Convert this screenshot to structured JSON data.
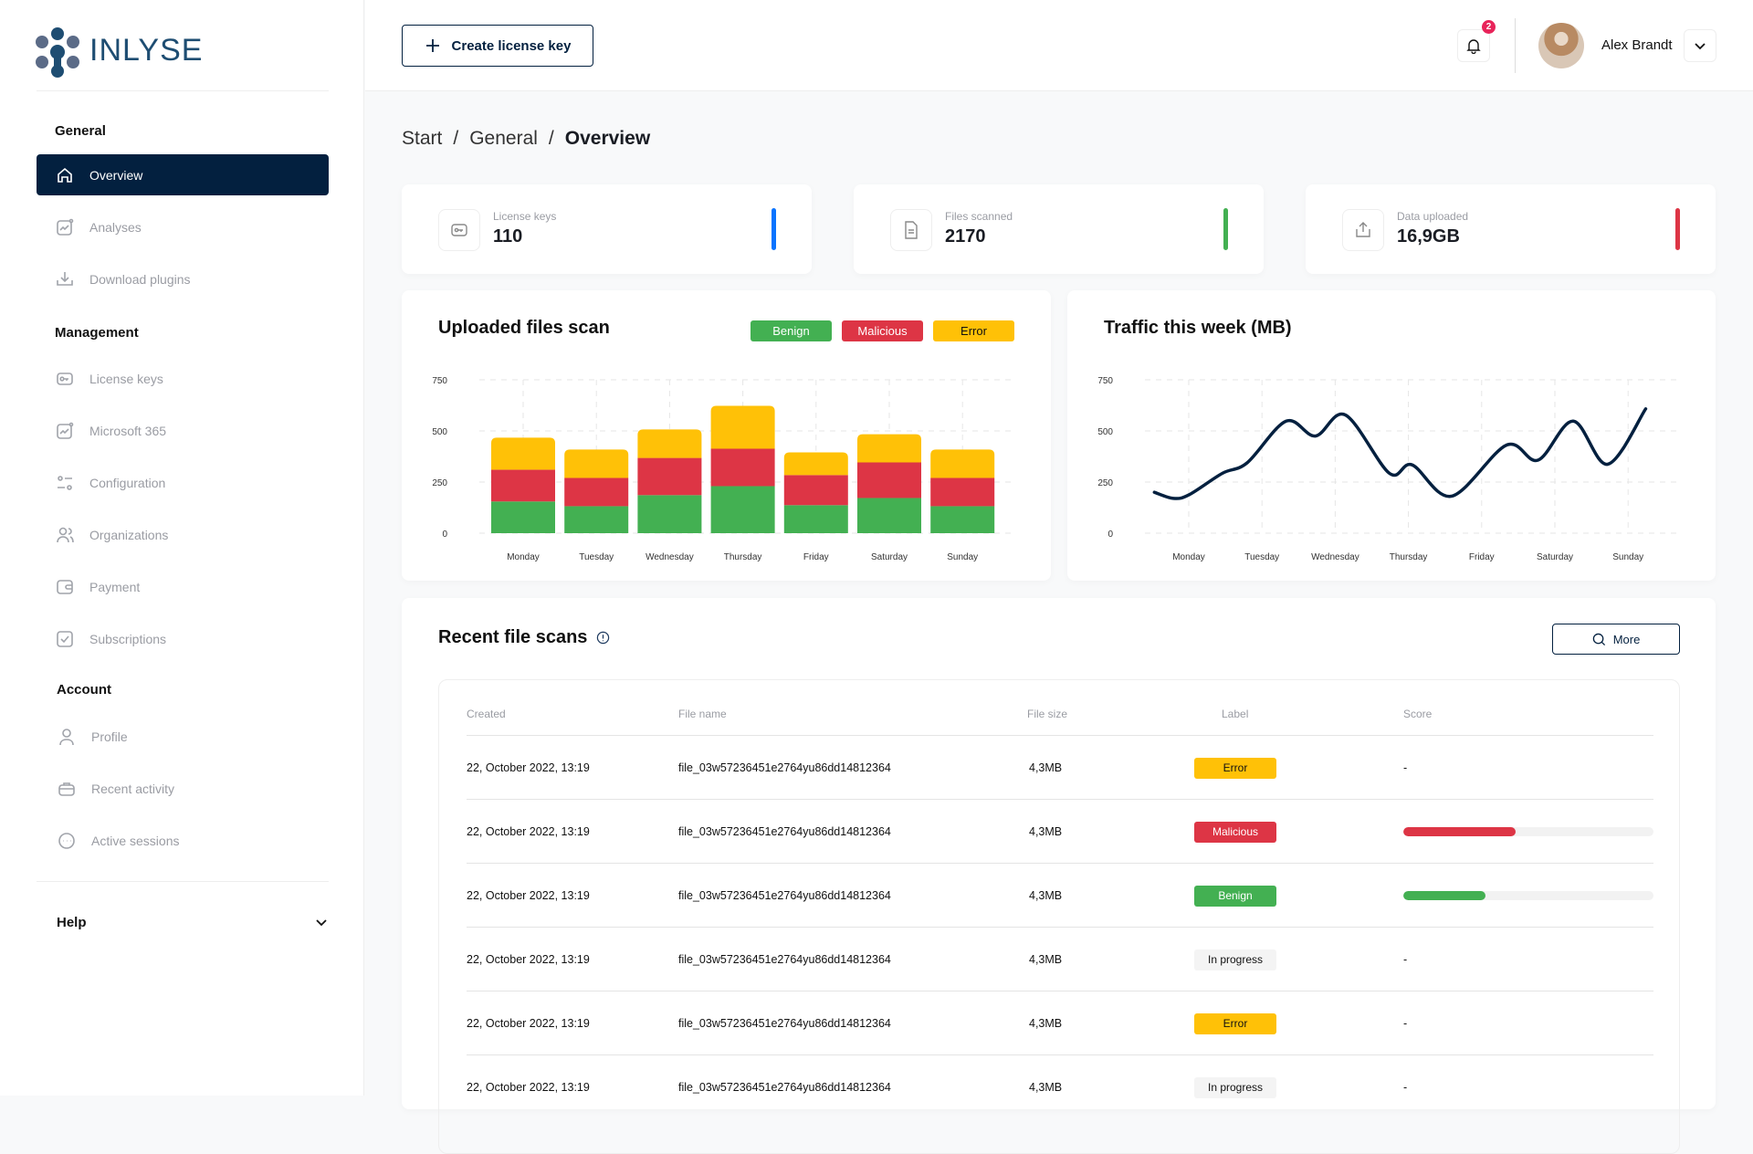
{
  "brand": {
    "name": "INLYSE"
  },
  "sidebar": {
    "sections": {
      "general": "General",
      "management": "Management",
      "account": "Account"
    },
    "items": [
      {
        "label": "Overview",
        "icon": "home-icon"
      },
      {
        "label": "Analyses",
        "icon": "chart-icon"
      },
      {
        "label": "Download plugins",
        "icon": "download-icon"
      },
      {
        "label": "License keys",
        "icon": "key-icon"
      },
      {
        "label": "Microsoft 365",
        "icon": "chart-icon"
      },
      {
        "label": "Configuration",
        "icon": "sliders-icon"
      },
      {
        "label": "Organizations",
        "icon": "users-icon"
      },
      {
        "label": "Payment",
        "icon": "wallet-icon"
      },
      {
        "label": "Subscriptions",
        "icon": "check-square-icon"
      },
      {
        "label": "Profile",
        "icon": "user-icon"
      },
      {
        "label": "Recent activity",
        "icon": "briefcase-icon"
      },
      {
        "label": "Active sessions",
        "icon": "chat-icon"
      }
    ],
    "help": "Help"
  },
  "header": {
    "create_label": "Create license key",
    "notifications": "2",
    "user_name": "Alex Brandt"
  },
  "breadcrumb": [
    "Start",
    "General",
    "Overview"
  ],
  "stats": [
    {
      "label": "License keys",
      "value": "110",
      "color": "#0a74ff"
    },
    {
      "label": "Files scanned",
      "value": "2170",
      "color": "#43b052"
    },
    {
      "label": "Data uploaded",
      "value": "16,9GB",
      "color": "#dd3545"
    }
  ],
  "colors": {
    "benign": "#43b052",
    "malicious": "#dd3545",
    "error": "#ffc107",
    "navy": "#03203f"
  },
  "chart_data": [
    {
      "type": "bar",
      "stacked": true,
      "title": "Uploaded files scan",
      "categories": [
        "Monday",
        "Tuesday",
        "Wednesday",
        "Thursday",
        "Friday",
        "Saturday",
        "Sunday"
      ],
      "series": [
        {
          "name": "Benign",
          "values": [
            155,
            132,
            186,
            230,
            137,
            172,
            132
          ]
        },
        {
          "name": "Malicious",
          "values": [
            155,
            138,
            182,
            183,
            147,
            174,
            138
          ]
        },
        {
          "name": "Error",
          "values": [
            157,
            139,
            139,
            210,
            111,
            138,
            139
          ]
        }
      ],
      "yticks": [
        0,
        250,
        500,
        750
      ],
      "ylim": [
        0,
        750
      ],
      "grid": true,
      "legend": "top-right"
    },
    {
      "type": "line",
      "title": "Traffic this week (MB)",
      "categories": [
        "Monday",
        "Tuesday",
        "Wednesday",
        "Thursday",
        "Friday",
        "Saturday",
        "Sunday"
      ],
      "x": [
        -0.47,
        -0.21,
        0.01,
        0.46,
        0.8,
        1.33,
        1.73,
        2.14,
        2.74,
        3.05,
        3.59,
        4.34,
        4.77,
        5.25,
        5.72,
        6.24
      ],
      "y": [
        200,
        170,
        189,
        293,
        345,
        548,
        475,
        578,
        293,
        334,
        181,
        431,
        357,
        548,
        337,
        608
      ],
      "yticks": [
        0,
        250,
        500,
        750
      ],
      "ylim": [
        0,
        750
      ],
      "grid": true
    }
  ],
  "table": {
    "title": "Recent file scans",
    "more_label": "More",
    "columns": [
      "Created",
      "File name",
      "File size",
      "Label",
      "Score"
    ],
    "rows": [
      {
        "created": "22, October 2022, 13:19",
        "name": "file_03w57236451e2764yu86dd14812364",
        "size": "4,3MB",
        "label": "Error",
        "score": "-"
      },
      {
        "created": "22, October 2022, 13:19",
        "name": "file_03w57236451e2764yu86dd14812364",
        "size": "4,3MB",
        "label": "Malicious",
        "score": 0.45
      },
      {
        "created": "22, October 2022, 13:19",
        "name": "file_03w57236451e2764yu86dd14812364",
        "size": "4,3MB",
        "label": "Benign",
        "score": 0.33
      },
      {
        "created": "22, October 2022, 13:19",
        "name": "file_03w57236451e2764yu86dd14812364",
        "size": "4,3MB",
        "label": "In progress",
        "score": "-"
      },
      {
        "created": "22, October 2022, 13:19",
        "name": "file_03w57236451e2764yu86dd14812364",
        "size": "4,3MB",
        "label": "Error",
        "score": "-"
      },
      {
        "created": "22, October 2022, 13:19",
        "name": "file_03w57236451e2764yu86dd14812364",
        "size": "4,3MB",
        "label": "In progress",
        "score": "-"
      }
    ]
  }
}
